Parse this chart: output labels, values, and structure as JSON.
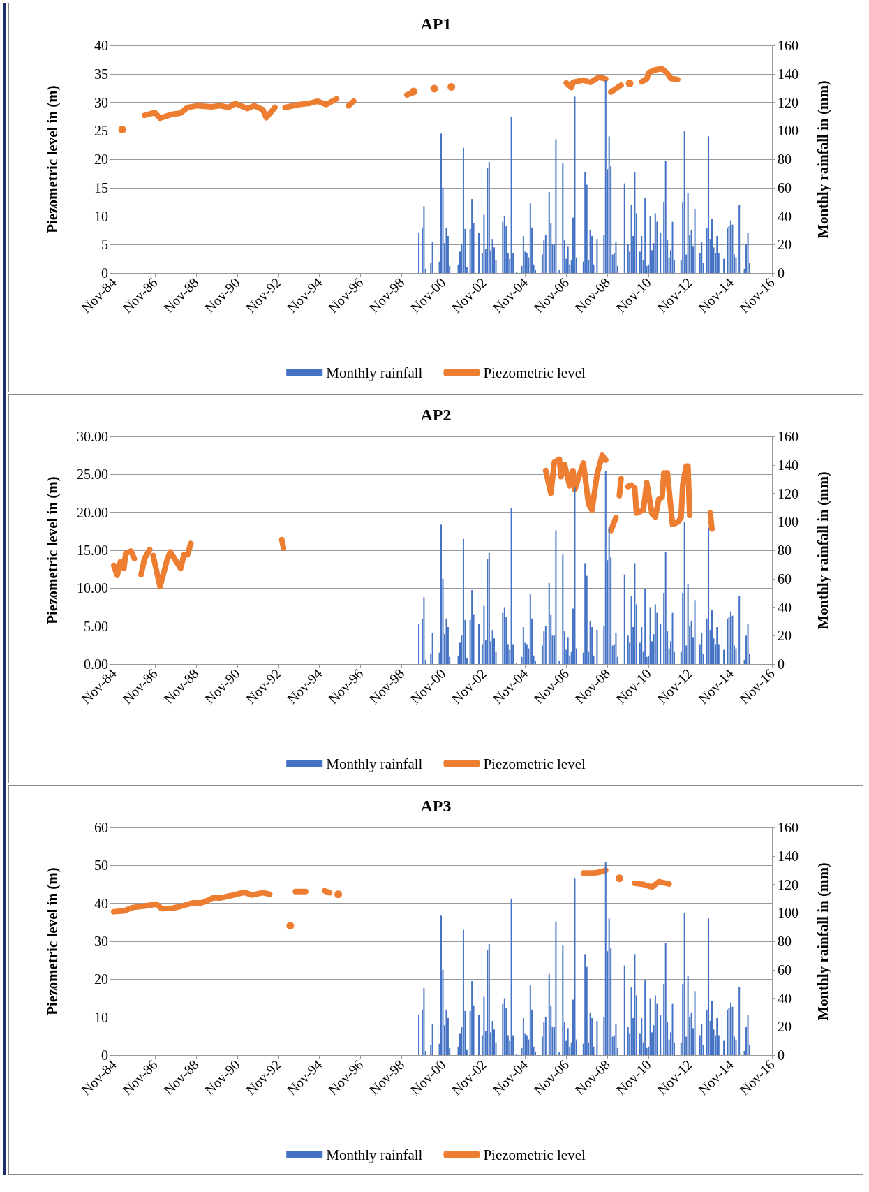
{
  "chart_data": [
    {
      "type": "bar",
      "title": "AP1",
      "ylabel": "Piezometric level in (m)",
      "y2label": "Monthly rainfall in (mm)",
      "xlim": [
        "1984-11",
        "2016-11"
      ],
      "xticks": [
        {
          "value": "1984-11",
          "label": "Nov-84"
        },
        {
          "value": "1986-11",
          "label": "Nov-86"
        },
        {
          "value": "1988-11",
          "label": "Nov-88"
        },
        {
          "value": "1990-11",
          "label": "Nov-90"
        },
        {
          "value": "1992-11",
          "label": "Nov-92"
        },
        {
          "value": "1994-11",
          "label": "Nov-94"
        },
        {
          "value": "1996-11",
          "label": "Nov-96"
        },
        {
          "value": "1998-11",
          "label": "Nov-98"
        },
        {
          "value": "2000-11",
          "label": "Nov-00"
        },
        {
          "value": "2002-11",
          "label": "Nov-02"
        },
        {
          "value": "2004-11",
          "label": "Nov-04"
        },
        {
          "value": "2006-11",
          "label": "Nov-06"
        },
        {
          "value": "2008-11",
          "label": "Nov-08"
        },
        {
          "value": "2010-11",
          "label": "Nov-10"
        },
        {
          "value": "2012-11",
          "label": "Nov-12"
        },
        {
          "value": "2014-11",
          "label": "Nov-14"
        },
        {
          "value": "2016-11",
          "label": "Nov-16"
        }
      ],
      "ylim": [
        0,
        40
      ],
      "yticks": [
        0,
        5,
        10,
        15,
        20,
        25,
        30,
        35,
        40
      ],
      "y2lim": [
        0,
        160
      ],
      "y2ticks": [
        0,
        20,
        40,
        60,
        80,
        100,
        120,
        140,
        160
      ],
      "grid": "y",
      "legend": "bottom",
      "marker": "none",
      "line_style": "solid",
      "series": [
        {
          "name": "Monthly rainfall",
          "axis": "y2",
          "color": "#4472c4",
          "x": [
            "1999-09",
            "1999-11",
            "1999-12",
            "2000-01",
            "2000-04",
            "2000-05",
            "2000-09",
            "2000-10",
            "2000-11",
            "2000-12",
            "2001-01",
            "2001-02",
            "2001-03",
            "2001-08",
            "2001-09",
            "2001-10",
            "2001-11",
            "2001-12",
            "2002-01",
            "2002-03",
            "2002-04",
            "2002-05",
            "2002-08",
            "2002-10",
            "2002-11",
            "2002-12",
            "2003-01",
            "2003-02",
            "2003-03",
            "2003-04",
            "2003-05",
            "2003-06",
            "2003-10",
            "2003-11",
            "2003-12",
            "2004-01",
            "2004-02",
            "2004-03",
            "2004-04",
            "2004-06",
            "2004-09",
            "2004-10",
            "2004-11",
            "2004-12",
            "2005-01",
            "2005-02",
            "2005-03",
            "2005-04",
            "2005-05",
            "2005-09",
            "2005-10",
            "2005-11",
            "2006-01",
            "2006-02",
            "2006-03",
            "2006-04",
            "2006-05",
            "2006-07",
            "2006-09",
            "2006-10",
            "2006-11",
            "2006-12",
            "2007-01",
            "2007-02",
            "2007-03",
            "2007-04",
            "2007-05",
            "2007-09",
            "2007-10",
            "2007-11",
            "2007-12",
            "2008-01",
            "2008-02",
            "2008-03",
            "2008-05",
            "2008-09",
            "2008-10",
            "2008-11",
            "2008-12",
            "2009-01",
            "2009-02",
            "2009-03",
            "2009-04",
            "2009-05",
            "2009-09",
            "2009-11",
            "2009-12",
            "2010-01",
            "2010-02",
            "2010-03",
            "2010-04",
            "2010-06",
            "2010-07",
            "2010-08",
            "2010-09",
            "2010-10",
            "2010-11",
            "2010-12",
            "2011-01",
            "2011-02",
            "2011-03",
            "2011-04",
            "2011-06",
            "2011-08",
            "2011-09",
            "2011-10",
            "2011-11",
            "2011-12",
            "2012-01",
            "2012-02",
            "2012-06",
            "2012-07",
            "2012-08",
            "2012-09",
            "2012-10",
            "2012-11",
            "2012-12",
            "2013-01",
            "2013-02",
            "2013-05",
            "2013-06",
            "2013-07",
            "2013-09",
            "2013-10",
            "2013-11",
            "2013-12",
            "2014-01",
            "2014-02",
            "2014-03",
            "2014-04",
            "2014-07",
            "2014-09",
            "2014-10",
            "2014-11",
            "2014-12",
            "2015-01",
            "2015-02",
            "2015-04",
            "2015-07",
            "2015-08",
            "2015-09",
            "2015-10"
          ],
          "values": [
            28,
            32,
            47,
            3,
            7,
            22,
            8,
            98,
            60,
            21,
            32,
            26,
            5,
            6,
            15,
            20,
            88,
            31,
            4,
            31,
            52,
            35,
            28,
            14,
            41,
            17,
            74,
            78,
            16,
            24,
            18,
            9,
            36,
            40,
            33,
            14,
            10,
            110,
            14,
            1,
            5,
            26,
            15,
            14,
            11,
            49,
            32,
            6,
            2,
            13,
            23,
            27,
            57,
            35,
            20,
            20,
            94,
            2,
            77,
            23,
            10,
            19,
            6,
            9,
            39,
            124,
            11,
            8,
            71,
            62,
            9,
            30,
            26,
            6,
            24,
            27,
            136,
            73,
            96,
            75,
            13,
            14,
            22,
            5,
            63,
            20,
            15,
            48,
            26,
            71,
            42,
            15,
            26,
            9,
            53,
            5,
            6,
            40,
            16,
            21,
            42,
            36,
            28,
            50,
            79,
            23,
            11,
            16,
            36,
            9,
            9,
            50,
            100,
            13,
            56,
            27,
            30,
            19,
            45,
            14,
            22,
            7,
            32,
            96,
            24,
            38,
            18,
            14,
            26,
            14,
            10,
            32,
            33,
            37,
            34,
            13,
            11,
            48,
            3,
            20,
            28,
            7
          ]
        },
        {
          "name": "Piezometric level",
          "type": "line",
          "color": "#ed7d31",
          "x": [
            "1985-04",
            "1985-12",
            "1986-05",
            "1986-11",
            "1987-02",
            "1987-09",
            "1988-02",
            "1988-06",
            "1988-12",
            "1989-08",
            "1990-01",
            "1990-06",
            "1990-10",
            "1991-05",
            "1991-09",
            "1992-02",
            "1992-04",
            "1992-09",
            "1992-12",
            "1993-03",
            "1993-11",
            "1994-05",
            "1994-10",
            "1995-03",
            "1995-09",
            "1996-01",
            "1996-04",
            "1996-07",
            "1997-06",
            "1999-02",
            "1999-04",
            "1999-05",
            "1999-06",
            "2000-01",
            "2000-06",
            "2000-12",
            "2001-04",
            "2004-01",
            "2006-11",
            "2007-02",
            "2007-03",
            "2007-09",
            "2008-01",
            "2008-06",
            "2008-10",
            "2008-12",
            "2009-01",
            "2009-07",
            "2009-09",
            "2009-12",
            "2010-04",
            "2010-07",
            "2010-10",
            "2010-11",
            "2011-03",
            "2011-07",
            "2011-10",
            "2011-12",
            "2012-04"
          ],
          "values": [
            25.2,
            null,
            27.7,
            28.2,
            27.2,
            27.9,
            28.1,
            29.1,
            29.4,
            29.2,
            29.4,
            29.1,
            29.8,
            28.9,
            29.4,
            28.7,
            27.3,
            29.1,
            null,
            29.1,
            29.6,
            29.8,
            30.2,
            29.6,
            30.6,
            null,
            29.4,
            30.2,
            null,
            31.3,
            31.5,
            null,
            31.9,
            null,
            32.4,
            null,
            32.7,
            null,
            33.4,
            32.6,
            33.5,
            33.9,
            33.5,
            34.4,
            34.1,
            null,
            31.8,
            33.0,
            null,
            33.3,
            null,
            33.6,
            34.1,
            35.2,
            35.7,
            35.9,
            35.1,
            34.2,
            34.0
          ]
        }
      ]
    },
    {
      "type": "bar",
      "title": "AP2",
      "ylabel": "Piezometric level in (m)",
      "y2label": "Monthly rainfall in (mm)",
      "xlim": [
        "1984-11",
        "2016-11"
      ],
      "xticks": [
        {
          "value": "1984-11",
          "label": "Nov-84"
        },
        {
          "value": "1986-11",
          "label": "Nov-86"
        },
        {
          "value": "1988-11",
          "label": "Nov-88"
        },
        {
          "value": "1990-11",
          "label": "Nov-90"
        },
        {
          "value": "1992-11",
          "label": "Nov-92"
        },
        {
          "value": "1994-11",
          "label": "Nov-94"
        },
        {
          "value": "1996-11",
          "label": "Nov-96"
        },
        {
          "value": "1998-11",
          "label": "Nov-98"
        },
        {
          "value": "2000-11",
          "label": "Nov-00"
        },
        {
          "value": "2002-11",
          "label": "Nov-02"
        },
        {
          "value": "2004-11",
          "label": "Nov-04"
        },
        {
          "value": "2006-11",
          "label": "Nov-06"
        },
        {
          "value": "2008-11",
          "label": "Nov-08"
        },
        {
          "value": "2010-11",
          "label": "Nov-10"
        },
        {
          "value": "2012-11",
          "label": "Nov-12"
        },
        {
          "value": "2014-11",
          "label": "Nov-14"
        },
        {
          "value": "2016-11",
          "label": "Nov-16"
        }
      ],
      "ylim": [
        0,
        30
      ],
      "yticks": [
        {
          "value": 0,
          "label": "0.00"
        },
        {
          "value": 5,
          "label": "5.00"
        },
        {
          "value": 10,
          "label": "10.00"
        },
        {
          "value": 15,
          "label": "15.00"
        },
        {
          "value": 20,
          "label": "20.00"
        },
        {
          "value": 25,
          "label": "25.00"
        },
        {
          "value": 30,
          "label": "30.00"
        }
      ],
      "y2lim": [
        0,
        160
      ],
      "y2ticks": [
        0,
        20,
        40,
        60,
        80,
        100,
        120,
        140,
        160
      ],
      "grid": "y",
      "legend": "bottom",
      "marker": "none",
      "line_style": "solid",
      "series": [
        {
          "name": "Monthly rainfall",
          "axis": "y2",
          "color": "#4472c4",
          "x": [
            "1999-09",
            "1999-11",
            "1999-12",
            "2000-01",
            "2000-04",
            "2000-05",
            "2000-09",
            "2000-10",
            "2000-11",
            "2000-12",
            "2001-01",
            "2001-02",
            "2001-03",
            "2001-08",
            "2001-09",
            "2001-10",
            "2001-11",
            "2001-12",
            "2002-01",
            "2002-03",
            "2002-04",
            "2002-05",
            "2002-08",
            "2002-10",
            "2002-11",
            "2002-12",
            "2003-01",
            "2003-02",
            "2003-03",
            "2003-04",
            "2003-05",
            "2003-06",
            "2003-10",
            "2003-11",
            "2003-12",
            "2004-01",
            "2004-02",
            "2004-03",
            "2004-04",
            "2004-06",
            "2004-09",
            "2004-10",
            "2004-11",
            "2004-12",
            "2005-01",
            "2005-02",
            "2005-03",
            "2005-04",
            "2005-05",
            "2005-09",
            "2005-10",
            "2005-11",
            "2006-01",
            "2006-02",
            "2006-03",
            "2006-04",
            "2006-05",
            "2006-07",
            "2006-09",
            "2006-10",
            "2006-11",
            "2006-12",
            "2007-01",
            "2007-02",
            "2007-03",
            "2007-04",
            "2007-05",
            "2007-09",
            "2007-10",
            "2007-11",
            "2007-12",
            "2008-01",
            "2008-02",
            "2008-03",
            "2008-05",
            "2008-09",
            "2008-10",
            "2008-11",
            "2008-12",
            "2009-01",
            "2009-02",
            "2009-03",
            "2009-04",
            "2009-05",
            "2009-09",
            "2009-11",
            "2009-12",
            "2010-01",
            "2010-02",
            "2010-03",
            "2010-04",
            "2010-06",
            "2010-07",
            "2010-08",
            "2010-09",
            "2010-10",
            "2010-11",
            "2010-12",
            "2011-01",
            "2011-02",
            "2011-03",
            "2011-04",
            "2011-06",
            "2011-08",
            "2011-09",
            "2011-10",
            "2011-11",
            "2011-12",
            "2012-01",
            "2012-02",
            "2012-06",
            "2012-07",
            "2012-08",
            "2012-09",
            "2012-10",
            "2012-11",
            "2012-12",
            "2013-01",
            "2013-02",
            "2013-05",
            "2013-06",
            "2013-07",
            "2013-09",
            "2013-10",
            "2013-11",
            "2013-12",
            "2014-01",
            "2014-02",
            "2014-03",
            "2014-04",
            "2014-07",
            "2014-09",
            "2014-10",
            "2014-11",
            "2014-12",
            "2015-01",
            "2015-02",
            "2015-04",
            "2015-07",
            "2015-08",
            "2015-09",
            "2015-10"
          ],
          "values": [
            28,
            32,
            47,
            3,
            7,
            22,
            8,
            98,
            60,
            21,
            32,
            26,
            5,
            6,
            15,
            20,
            88,
            31,
            4,
            31,
            52,
            35,
            28,
            14,
            41,
            17,
            74,
            78,
            16,
            24,
            18,
            9,
            36,
            40,
            33,
            14,
            10,
            110,
            14,
            1,
            5,
            26,
            15,
            14,
            11,
            49,
            32,
            6,
            2,
            13,
            23,
            27,
            57,
            35,
            20,
            20,
            94,
            2,
            77,
            23,
            10,
            19,
            6,
            9,
            39,
            124,
            11,
            8,
            71,
            62,
            9,
            30,
            26,
            6,
            24,
            27,
            136,
            73,
            96,
            75,
            13,
            14,
            22,
            5,
            63,
            20,
            15,
            48,
            26,
            71,
            42,
            15,
            26,
            9,
            53,
            5,
            6,
            40,
            16,
            21,
            42,
            36,
            28,
            50,
            79,
            23,
            11,
            16,
            36,
            9,
            9,
            50,
            100,
            13,
            56,
            27,
            30,
            19,
            45,
            14,
            22,
            7,
            32,
            96,
            24,
            38,
            18,
            14,
            26,
            14,
            10,
            32,
            33,
            37,
            34,
            13,
            11,
            48,
            3,
            20,
            28,
            7
          ]
        },
        {
          "name": "Piezometric level",
          "type": "line",
          "color": "#ed7d31",
          "x": [
            "1984-11",
            "1985-01",
            "1985-03",
            "1985-05",
            "1985-06",
            "1985-09",
            "1985-11",
            "1986-01",
            "1986-03",
            "1986-05",
            "1986-08",
            "1986-09",
            "1986-10",
            "1987-02",
            "1987-06",
            "1987-08",
            "1988-02",
            "1988-04",
            "1988-06",
            "1988-08",
            "1990-01",
            "1993-01",
            "1993-02",
            "1995-01",
            "2005-11",
            "2006-02",
            "2006-04",
            "2006-07",
            "2006-08",
            "2006-10",
            "2007-01",
            "2007-03",
            "2007-04",
            "2007-09",
            "2007-12",
            "2008-02",
            "2008-05",
            "2008-08",
            "2008-10",
            "2008-12",
            "2009-01",
            "2009-04",
            "2009-05",
            "2009-06",
            "2009-07",
            "2009-09",
            "2009-11",
            "2010-01",
            "2010-02",
            "2010-03",
            "2010-04",
            "2010-08",
            "2010-10",
            "2011-01",
            "2011-03",
            "2011-05",
            "2011-07",
            "2011-08",
            "2011-10",
            "2012-01",
            "2012-04",
            "2012-06",
            "2012-07",
            "2012-09",
            "2012-10",
            "2012-11",
            "2013-05",
            "2013-11",
            "2013-12"
          ],
          "values": [
            13.0,
            11.7,
            13.5,
            12.6,
            14.6,
            14.9,
            13.9,
            null,
            11.8,
            13.9,
            15.1,
            null,
            14.3,
            10.2,
            13.6,
            14.8,
            12.6,
            14.4,
            14.4,
            15.9,
            null,
            16.4,
            15.3,
            null,
            25.5,
            22.5,
            26.6,
            27.0,
            24.7,
            26.3,
            23.5,
            25.5,
            23.0,
            26.5,
            21.1,
            20.3,
            25.0,
            27.5,
            26.9,
            null,
            17.6,
            19.3,
            null,
            22.2,
            24.4,
            null,
            23.4,
            23.6,
            null,
            23.2,
            19.9,
            20.3,
            23.9,
            19.8,
            19.4,
            21.7,
            22.0,
            25.2,
            25.2,
            18.4,
            18.7,
            19.3,
            23.7,
            26.1,
            26.1,
            19.6,
            null,
            19.9,
            17.8
          ]
        }
      ]
    },
    {
      "type": "bar",
      "title": "AP3",
      "ylabel": "Piezometric level in (m)",
      "y2label": "Monthly rainfall in (mm)",
      "xlim": [
        "1984-11",
        "2016-11"
      ],
      "xticks": [
        {
          "value": "1984-11",
          "label": "Nov-84"
        },
        {
          "value": "1986-11",
          "label": "Nov-86"
        },
        {
          "value": "1988-11",
          "label": "Nov-88"
        },
        {
          "value": "1990-11",
          "label": "Nov-90"
        },
        {
          "value": "1992-11",
          "label": "Nov-92"
        },
        {
          "value": "1994-11",
          "label": "Nov-94"
        },
        {
          "value": "1996-11",
          "label": "Nov-96"
        },
        {
          "value": "1998-11",
          "label": "Nov-98"
        },
        {
          "value": "2000-11",
          "label": "Nov-00"
        },
        {
          "value": "2002-11",
          "label": "Nov-02"
        },
        {
          "value": "2004-11",
          "label": "Nov-04"
        },
        {
          "value": "2006-11",
          "label": "Nov-06"
        },
        {
          "value": "2008-11",
          "label": "Nov-08"
        },
        {
          "value": "2010-11",
          "label": "Nov-10"
        },
        {
          "value": "2012-11",
          "label": "Nov-12"
        },
        {
          "value": "2014-11",
          "label": "Nov-14"
        },
        {
          "value": "2016-11",
          "label": "Nov-16"
        }
      ],
      "ylim": [
        0,
        60
      ],
      "yticks": [
        0,
        10,
        20,
        30,
        40,
        50,
        60
      ],
      "y2lim": [
        0,
        160
      ],
      "y2ticks": [
        0,
        20,
        40,
        60,
        80,
        100,
        120,
        140,
        160
      ],
      "grid": "y",
      "legend": "bottom",
      "marker": "none",
      "line_style": "solid",
      "series": [
        {
          "name": "Monthly rainfall",
          "axis": "y2",
          "color": "#4472c4",
          "x": [
            "1999-09",
            "1999-11",
            "1999-12",
            "2000-01",
            "2000-04",
            "2000-05",
            "2000-09",
            "2000-10",
            "2000-11",
            "2000-12",
            "2001-01",
            "2001-02",
            "2001-03",
            "2001-08",
            "2001-09",
            "2001-10",
            "2001-11",
            "2001-12",
            "2002-01",
            "2002-03",
            "2002-04",
            "2002-05",
            "2002-08",
            "2002-10",
            "2002-11",
            "2002-12",
            "2003-01",
            "2003-02",
            "2003-03",
            "2003-04",
            "2003-05",
            "2003-06",
            "2003-10",
            "2003-11",
            "2003-12",
            "2004-01",
            "2004-02",
            "2004-03",
            "2004-04",
            "2004-06",
            "2004-09",
            "2004-10",
            "2004-11",
            "2004-12",
            "2005-01",
            "2005-02",
            "2005-03",
            "2005-04",
            "2005-05",
            "2005-09",
            "2005-10",
            "2005-11",
            "2006-01",
            "2006-02",
            "2006-03",
            "2006-04",
            "2006-05",
            "2006-07",
            "2006-09",
            "2006-10",
            "2006-11",
            "2006-12",
            "2007-01",
            "2007-02",
            "2007-03",
            "2007-04",
            "2007-05",
            "2007-09",
            "2007-10",
            "2007-11",
            "2007-12",
            "2008-01",
            "2008-02",
            "2008-03",
            "2008-05",
            "2008-09",
            "2008-10",
            "2008-11",
            "2008-12",
            "2009-01",
            "2009-02",
            "2009-03",
            "2009-04",
            "2009-05",
            "2009-09",
            "2009-11",
            "2009-12",
            "2010-01",
            "2010-02",
            "2010-03",
            "2010-04",
            "2010-06",
            "2010-07",
            "2010-08",
            "2010-09",
            "2010-10",
            "2010-11",
            "2010-12",
            "2011-01",
            "2011-02",
            "2011-03",
            "2011-04",
            "2011-06",
            "2011-08",
            "2011-09",
            "2011-10",
            "2011-11",
            "2011-12",
            "2012-01",
            "2012-02",
            "2012-06",
            "2012-07",
            "2012-08",
            "2012-09",
            "2012-10",
            "2012-11",
            "2012-12",
            "2013-01",
            "2013-02",
            "2013-05",
            "2013-06",
            "2013-07",
            "2013-09",
            "2013-10",
            "2013-11",
            "2013-12",
            "2014-01",
            "2014-02",
            "2014-03",
            "2014-04",
            "2014-07",
            "2014-09",
            "2014-10",
            "2014-11",
            "2014-12",
            "2015-01",
            "2015-02",
            "2015-04",
            "2015-07",
            "2015-08",
            "2015-09",
            "2015-10"
          ],
          "values": [
            28,
            32,
            47,
            3,
            7,
            22,
            8,
            98,
            60,
            21,
            32,
            26,
            5,
            6,
            15,
            20,
            88,
            31,
            4,
            31,
            52,
            35,
            28,
            14,
            41,
            17,
            74,
            78,
            16,
            24,
            18,
            9,
            36,
            40,
            33,
            14,
            10,
            110,
            14,
            1,
            5,
            26,
            15,
            14,
            11,
            49,
            32,
            6,
            2,
            13,
            23,
            27,
            57,
            35,
            20,
            20,
            94,
            2,
            77,
            23,
            10,
            19,
            6,
            9,
            39,
            124,
            11,
            8,
            71,
            62,
            9,
            30,
            26,
            6,
            24,
            27,
            136,
            73,
            96,
            75,
            13,
            14,
            22,
            5,
            63,
            20,
            15,
            48,
            26,
            71,
            42,
            15,
            26,
            9,
            53,
            5,
            6,
            40,
            16,
            21,
            42,
            36,
            28,
            50,
            79,
            23,
            11,
            16,
            36,
            9,
            9,
            50,
            100,
            13,
            56,
            27,
            30,
            19,
            45,
            14,
            22,
            7,
            32,
            96,
            24,
            38,
            18,
            14,
            26,
            14,
            10,
            32,
            33,
            37,
            34,
            13,
            11,
            48,
            3,
            20,
            28,
            7
          ]
        },
        {
          "name": "Piezometric level",
          "type": "line",
          "color": "#ed7d31",
          "x": [
            "1984-11",
            "1985-05",
            "1985-10",
            "1986-05",
            "1986-12",
            "1987-03",
            "1987-09",
            "1988-02",
            "1988-09",
            "1989-02",
            "1989-07",
            "1989-09",
            "1990-01",
            "1990-08",
            "1991-03",
            "1991-08",
            "1992-02",
            "1992-06",
            "1992-10",
            "1993-06",
            "1993-07",
            "1993-09",
            "1994-03",
            "1994-08",
            "1995-02",
            "1995-05",
            "1995-07",
            "1995-10",
            "1997-01",
            "2007-09",
            "2008-04",
            "2008-08",
            "2008-10",
            "2009-02",
            "2009-06",
            "2009-09",
            "2010-03",
            "2010-08",
            "2011-01",
            "2011-05",
            "2011-11"
          ],
          "values": [
            37.8,
            38.0,
            38.9,
            39.3,
            39.8,
            38.6,
            38.7,
            39.2,
            40.1,
            40.1,
            41.0,
            41.5,
            41.4,
            42.1,
            42.9,
            42.2,
            42.8,
            42.4,
            null,
            34.1,
            null,
            43.1,
            43.1,
            null,
            43.3,
            42.8,
            null,
            42.4,
            null,
            48.0,
            48.0,
            48.4,
            48.7,
            null,
            46.6,
            null,
            45.3,
            45.0,
            44.3,
            45.7,
            45.1
          ]
        }
      ]
    }
  ]
}
